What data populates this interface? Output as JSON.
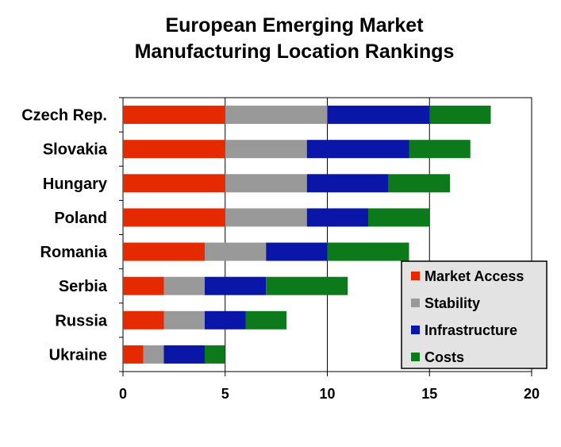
{
  "chart_data": {
    "type": "bar",
    "orientation": "horizontal",
    "stacked": true,
    "title_lines": [
      "European Emerging Market",
      "Manufacturing Location Rankings"
    ],
    "categories": [
      "Czech Rep.",
      "Slovakia",
      "Hungary",
      "Poland",
      "Romania",
      "Serbia",
      "Russia",
      "Ukraine"
    ],
    "series": [
      {
        "name": "Market Access",
        "color": "#e62a00",
        "values": [
          5,
          5,
          5,
          5,
          4,
          2,
          2,
          1
        ]
      },
      {
        "name": "Stability",
        "color": "#999999",
        "values": [
          5,
          4,
          4,
          4,
          3,
          2,
          2,
          1
        ]
      },
      {
        "name": "Infrastructure",
        "color": "#0a16a8",
        "values": [
          5,
          5,
          4,
          3,
          3,
          3,
          2,
          2
        ]
      },
      {
        "name": "Costs",
        "color": "#0c7a1a",
        "values": [
          3,
          3,
          3,
          3,
          4,
          4,
          2,
          1
        ]
      }
    ],
    "xlim": [
      0,
      20
    ],
    "xticks": [
      "0",
      "5",
      "10",
      "15",
      "20"
    ],
    "grid": "vertical",
    "legend_position": "bottom-right"
  }
}
